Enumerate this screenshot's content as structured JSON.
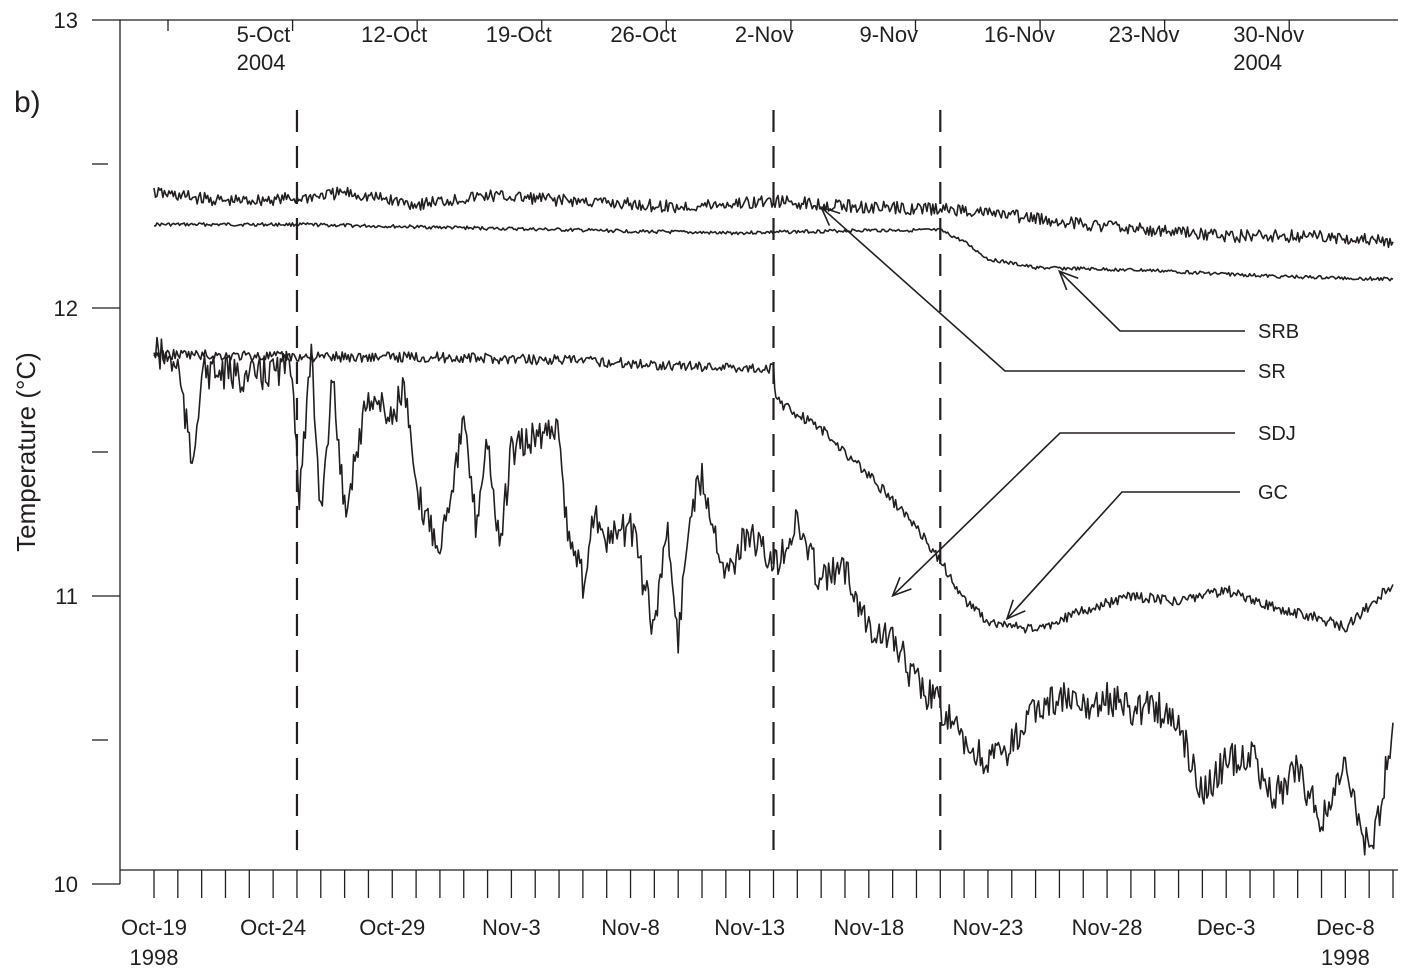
{
  "panel_label": "b)",
  "chart_data": {
    "type": "line",
    "ylabel": "Temperature (°C)",
    "ylim": [
      10,
      13
    ],
    "y_ticks": [
      "10",
      "11",
      "12",
      "13"
    ],
    "y_minor_step": 0.5,
    "x_bottom": {
      "range": [
        "1998-10-19",
        "1998-12-10"
      ],
      "labels": [
        {
          "date": "1998-10-19",
          "line1": "Oct-19",
          "line2": "1998"
        },
        {
          "date": "1998-10-24",
          "line1": "Oct-24",
          "line2": ""
        },
        {
          "date": "1998-10-29",
          "line1": "Oct-29",
          "line2": ""
        },
        {
          "date": "1998-11-03",
          "line1": "Nov-3",
          "line2": ""
        },
        {
          "date": "1998-11-08",
          "line1": "Nov-8",
          "line2": ""
        },
        {
          "date": "1998-11-13",
          "line1": "Nov-13",
          "line2": ""
        },
        {
          "date": "1998-11-18",
          "line1": "Nov-18",
          "line2": ""
        },
        {
          "date": "1998-11-23",
          "line1": "Nov-23",
          "line2": ""
        },
        {
          "date": "1998-11-28",
          "line1": "Nov-28",
          "line2": ""
        },
        {
          "date": "1998-12-03",
          "line1": "Dec-3",
          "line2": ""
        },
        {
          "date": "1998-12-08",
          "line1": "Dec-8",
          "line2": "1998"
        }
      ]
    },
    "x_top": {
      "range": [
        "2004-09-28",
        "2004-12-06"
      ],
      "labels": [
        {
          "date": "2004-10-05",
          "line1": "5-Oct",
          "line2": "2004"
        },
        {
          "date": "2004-10-12",
          "line1": "12-Oct",
          "line2": ""
        },
        {
          "date": "2004-10-19",
          "line1": "19-Oct",
          "line2": ""
        },
        {
          "date": "2004-10-26",
          "line1": "26-Oct",
          "line2": ""
        },
        {
          "date": "2004-11-02",
          "line1": "2-Nov",
          "line2": ""
        },
        {
          "date": "2004-11-09",
          "line1": "9-Nov",
          "line2": ""
        },
        {
          "date": "2004-11-16",
          "line1": "16-Nov",
          "line2": ""
        },
        {
          "date": "2004-11-23",
          "line1": "23-Nov",
          "line2": ""
        },
        {
          "date": "2004-11-30",
          "line1": "30-Nov",
          "line2": "2004"
        }
      ]
    },
    "event_lines": [
      "1998-10-25",
      "1998-11-14",
      "1998-11-21"
    ],
    "series": [
      {
        "name": "SRB",
        "points": [
          [
            "1998-10-19",
            12.29
          ],
          [
            "1998-10-25",
            12.29
          ],
          [
            "1998-10-31",
            12.28
          ],
          [
            "1998-11-06",
            12.27
          ],
          [
            "1998-11-12",
            12.26
          ],
          [
            "1998-11-18",
            12.27
          ],
          [
            "1998-11-21",
            12.27
          ],
          [
            "1998-11-22",
            12.23
          ],
          [
            "1998-11-23",
            12.17
          ],
          [
            "1998-11-25",
            12.14
          ],
          [
            "1998-11-30",
            12.13
          ],
          [
            "1998-12-05",
            12.11
          ],
          [
            "1998-12-10",
            12.1
          ]
        ]
      },
      {
        "name": "SR",
        "points": [
          [
            "1998-10-19",
            12.4
          ],
          [
            "1998-10-22",
            12.37
          ],
          [
            "1998-10-25",
            12.38
          ],
          [
            "1998-10-27",
            12.4
          ],
          [
            "1998-10-30",
            12.36
          ],
          [
            "1998-11-02",
            12.39
          ],
          [
            "1998-11-06",
            12.37
          ],
          [
            "1998-11-10",
            12.35
          ],
          [
            "1998-11-14",
            12.37
          ],
          [
            "1998-11-18",
            12.35
          ],
          [
            "1998-11-22",
            12.34
          ],
          [
            "1998-11-26",
            12.3
          ],
          [
            "1998-11-30",
            12.27
          ],
          [
            "1998-12-03",
            12.25
          ],
          [
            "1998-12-07",
            12.25
          ],
          [
            "1998-12-10",
            12.23
          ]
        ]
      },
      {
        "name": "SDJ",
        "points": [
          [
            "1998-10-19",
            11.84
          ],
          [
            "1998-10-25",
            11.83
          ],
          [
            "1998-10-30",
            11.83
          ],
          [
            "1998-11-05",
            11.82
          ],
          [
            "1998-11-10",
            11.8
          ],
          [
            "1998-11-14",
            11.79
          ],
          [
            "1998-11-14.1",
            11.68
          ],
          [
            "1998-11-16",
            11.58
          ],
          [
            "1998-11-18",
            11.42
          ],
          [
            "1998-11-20",
            11.24
          ],
          [
            "1998-11-21",
            11.12
          ],
          [
            "1998-11-22",
            10.99
          ],
          [
            "1998-11-23",
            10.91
          ],
          [
            "1998-11-25",
            10.88
          ],
          [
            "1998-11-27",
            10.95
          ],
          [
            "1998-11-29",
            11.0
          ],
          [
            "1998-12-01",
            10.98
          ],
          [
            "1998-12-03",
            11.02
          ],
          [
            "1998-12-05",
            10.96
          ],
          [
            "1998-12-07",
            10.92
          ],
          [
            "1998-12-08",
            10.89
          ],
          [
            "1998-12-10",
            11.04
          ]
        ]
      },
      {
        "name": "GC",
        "points": [
          [
            "1998-10-19",
            11.85
          ],
          [
            "1998-10-20",
            11.8
          ],
          [
            "1998-10-20.6",
            11.45
          ],
          [
            "1998-10-21",
            11.78
          ],
          [
            "1998-10-23",
            11.76
          ],
          [
            "1998-10-24.8",
            11.8
          ],
          [
            "1998-10-25.1",
            11.35
          ],
          [
            "1998-10-25.6",
            11.82
          ],
          [
            "1998-10-26",
            11.3
          ],
          [
            "1998-10-26.5",
            11.75
          ],
          [
            "1998-10-27",
            11.3
          ],
          [
            "1998-10-28",
            11.7
          ],
          [
            "1998-10-29",
            11.62
          ],
          [
            "1998-10-29.5",
            11.73
          ],
          [
            "1998-10-30",
            11.35
          ],
          [
            "1998-10-31",
            11.18
          ],
          [
            "1998-11-01",
            11.6
          ],
          [
            "1998-11-01.5",
            11.25
          ],
          [
            "1998-11-02",
            11.55
          ],
          [
            "1998-11-02.5",
            11.16
          ],
          [
            "1998-11-03",
            11.5
          ],
          [
            "1998-11-04",
            11.55
          ],
          [
            "1998-11-05",
            11.6
          ],
          [
            "1998-11-05.3",
            11.25
          ],
          [
            "1998-11-06",
            11.05
          ],
          [
            "1998-11-06.5",
            11.3
          ],
          [
            "1998-11-07",
            11.18
          ],
          [
            "1998-11-08",
            11.25
          ],
          [
            "1998-11-09",
            10.88
          ],
          [
            "1998-11-09.5",
            11.25
          ],
          [
            "1998-11-10",
            10.85
          ],
          [
            "1998-11-10.5",
            11.3
          ],
          [
            "1998-11-11",
            11.42
          ],
          [
            "1998-11-12",
            11.08
          ],
          [
            "1998-11-13",
            11.22
          ],
          [
            "1998-11-14",
            11.1
          ],
          [
            "1998-11-15",
            11.25
          ],
          [
            "1998-11-16",
            11.05
          ],
          [
            "1998-11-17",
            11.1
          ],
          [
            "1998-11-18",
            10.9
          ],
          [
            "1998-11-19",
            10.85
          ],
          [
            "1998-11-20",
            10.7
          ],
          [
            "1998-11-21",
            10.62
          ],
          [
            "1998-11-22",
            10.48
          ],
          [
            "1998-11-23",
            10.42
          ],
          [
            "1998-11-24",
            10.48
          ],
          [
            "1998-11-25",
            10.6
          ],
          [
            "1998-11-26",
            10.65
          ],
          [
            "1998-11-27",
            10.6
          ],
          [
            "1998-11-28",
            10.65
          ],
          [
            "1998-11-29",
            10.6
          ],
          [
            "1998-11-30",
            10.62
          ],
          [
            "1998-12-01",
            10.55
          ],
          [
            "1998-12-02",
            10.32
          ],
          [
            "1998-12-03",
            10.42
          ],
          [
            "1998-12-04",
            10.45
          ],
          [
            "1998-12-05",
            10.3
          ],
          [
            "1998-12-06",
            10.4
          ],
          [
            "1998-12-07",
            10.22
          ],
          [
            "1998-12-08",
            10.4
          ],
          [
            "1998-12-09",
            10.1
          ],
          [
            "1998-12-09.5",
            10.28
          ],
          [
            "1998-12-10",
            10.56
          ]
        ]
      }
    ]
  }
}
